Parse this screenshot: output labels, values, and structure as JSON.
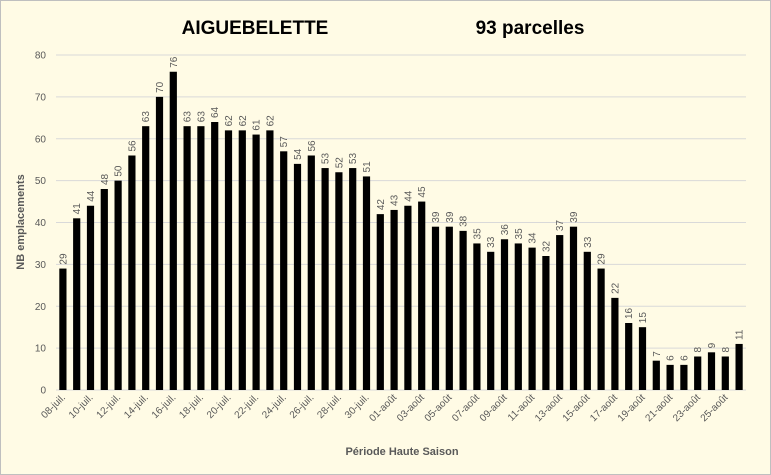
{
  "chart_data": {
    "type": "bar",
    "title": "AIGUEBELETTE",
    "subtitle": "93 parcelles",
    "x_label": "Période Haute Saison",
    "y_label": "NB emplacements",
    "categories": [
      "08-juil.",
      null,
      "10-juil.",
      null,
      "12-juil.",
      null,
      "14-juil.",
      null,
      "16-juil.",
      null,
      "18-juil.",
      null,
      "20-juil.",
      null,
      "22-juil.",
      null,
      "24-juil.",
      null,
      "26-juil.",
      null,
      "28-juil.",
      null,
      "30-juil.",
      null,
      "01-août",
      null,
      "03-août",
      null,
      "05-août",
      null,
      "07-août",
      null,
      "09-août",
      null,
      "11-août",
      null,
      "13-août",
      null,
      "15-août",
      null,
      "17-août",
      null,
      "19-août",
      null,
      "21-août",
      null,
      "23-août",
      null,
      "25-août",
      null
    ],
    "values": [
      29,
      41,
      44,
      48,
      50,
      56,
      63,
      70,
      76,
      63,
      63,
      64,
      62,
      62,
      61,
      62,
      57,
      54,
      56,
      53,
      52,
      53,
      51,
      42,
      43,
      44,
      45,
      39,
      39,
      38,
      35,
      33,
      36,
      35,
      34,
      32,
      37,
      39,
      33,
      29,
      22,
      16,
      15,
      7,
      6,
      6,
      8,
      9,
      8,
      11
    ],
    "color": "#000000",
    "ylim": [
      0,
      80
    ],
    "yticks": [
      0,
      10,
      20,
      30,
      40,
      50,
      60,
      70,
      80
    ],
    "grid": true
  }
}
